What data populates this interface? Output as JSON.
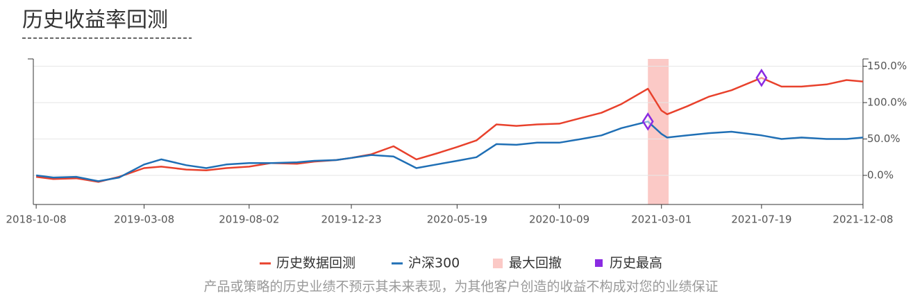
{
  "chart_data": {
    "type": "line",
    "title": "历史收益率回测",
    "x": [
      "2018-10-08",
      "2018-11-01",
      "2018-12-03",
      "2019-01-03",
      "2019-02-01",
      "2019-03-08",
      "2019-04-01",
      "2019-05-06",
      "2019-06-03",
      "2019-07-01",
      "2019-08-02",
      "2019-09-02",
      "2019-10-08",
      "2019-11-01",
      "2019-12-02",
      "2019-12-23",
      "2020-01-20",
      "2020-02-20",
      "2020-03-23",
      "2020-04-20",
      "2020-05-19",
      "2020-06-15",
      "2020-07-13",
      "2020-08-10",
      "2020-09-08",
      "2020-10-09",
      "2020-11-09",
      "2020-12-07",
      "2021-01-04",
      "2021-02-10",
      "2021-03-01",
      "2021-03-09",
      "2021-04-06",
      "2021-05-06",
      "2021-06-07",
      "2021-07-19",
      "2021-08-16",
      "2021-09-13",
      "2021-10-18",
      "2021-11-15",
      "2021-12-08"
    ],
    "series": [
      {
        "name": "历史数据回测",
        "color": "#e8412c",
        "values": [
          -2,
          -5,
          -4,
          -9,
          -2,
          10,
          12,
          8,
          7,
          10,
          12,
          17,
          16,
          19,
          21,
          24,
          29,
          40,
          22,
          30,
          39,
          48,
          70,
          68,
          70,
          71,
          79,
          86,
          98,
          119,
          89,
          84,
          95,
          108,
          117,
          134,
          122,
          122,
          125,
          131,
          129
        ]
      },
      {
        "name": "沪深300",
        "color": "#1f6fb5",
        "values": [
          0,
          -3,
          -2,
          -8,
          -3,
          15,
          22,
          14,
          10,
          15,
          17,
          17,
          18,
          20,
          21,
          24,
          28,
          26,
          10,
          15,
          20,
          25,
          43,
          42,
          45,
          45,
          50,
          55,
          65,
          74,
          57,
          52,
          55,
          58,
          60,
          55,
          50,
          52,
          50,
          50,
          52
        ]
      }
    ],
    "drawdown": {
      "name": "最大回撤",
      "color": "#fbc9c6",
      "x_range": [
        "2021-02-10",
        "2021-03-11"
      ]
    },
    "highs": {
      "name": "历史最高",
      "color": "#8a2be2",
      "x": [
        "2021-02-10",
        "2021-07-19"
      ],
      "values": [
        74,
        134
      ]
    },
    "xlim": [
      "2018-10-04",
      "2021-12-08"
    ],
    "xticks": [
      "2018-10-08",
      "2019-03-08",
      "2019-08-02",
      "2019-12-23",
      "2020-05-19",
      "2020-10-09",
      "2021-03-01",
      "2021-07-19",
      "2021-12-08"
    ],
    "ylim": [
      -40,
      160
    ],
    "yticks": [
      {
        "value": 0,
        "label": "0.0%"
      },
      {
        "value": 50,
        "label": "50.0%"
      },
      {
        "value": 100,
        "label": "100.0%"
      },
      {
        "value": 150,
        "label": "150.0%"
      }
    ],
    "grid": true,
    "footnote": "产品或策略的历史业绩不预示其未来表现，为其他客户创造的收益不构成对您的业绩保证"
  }
}
